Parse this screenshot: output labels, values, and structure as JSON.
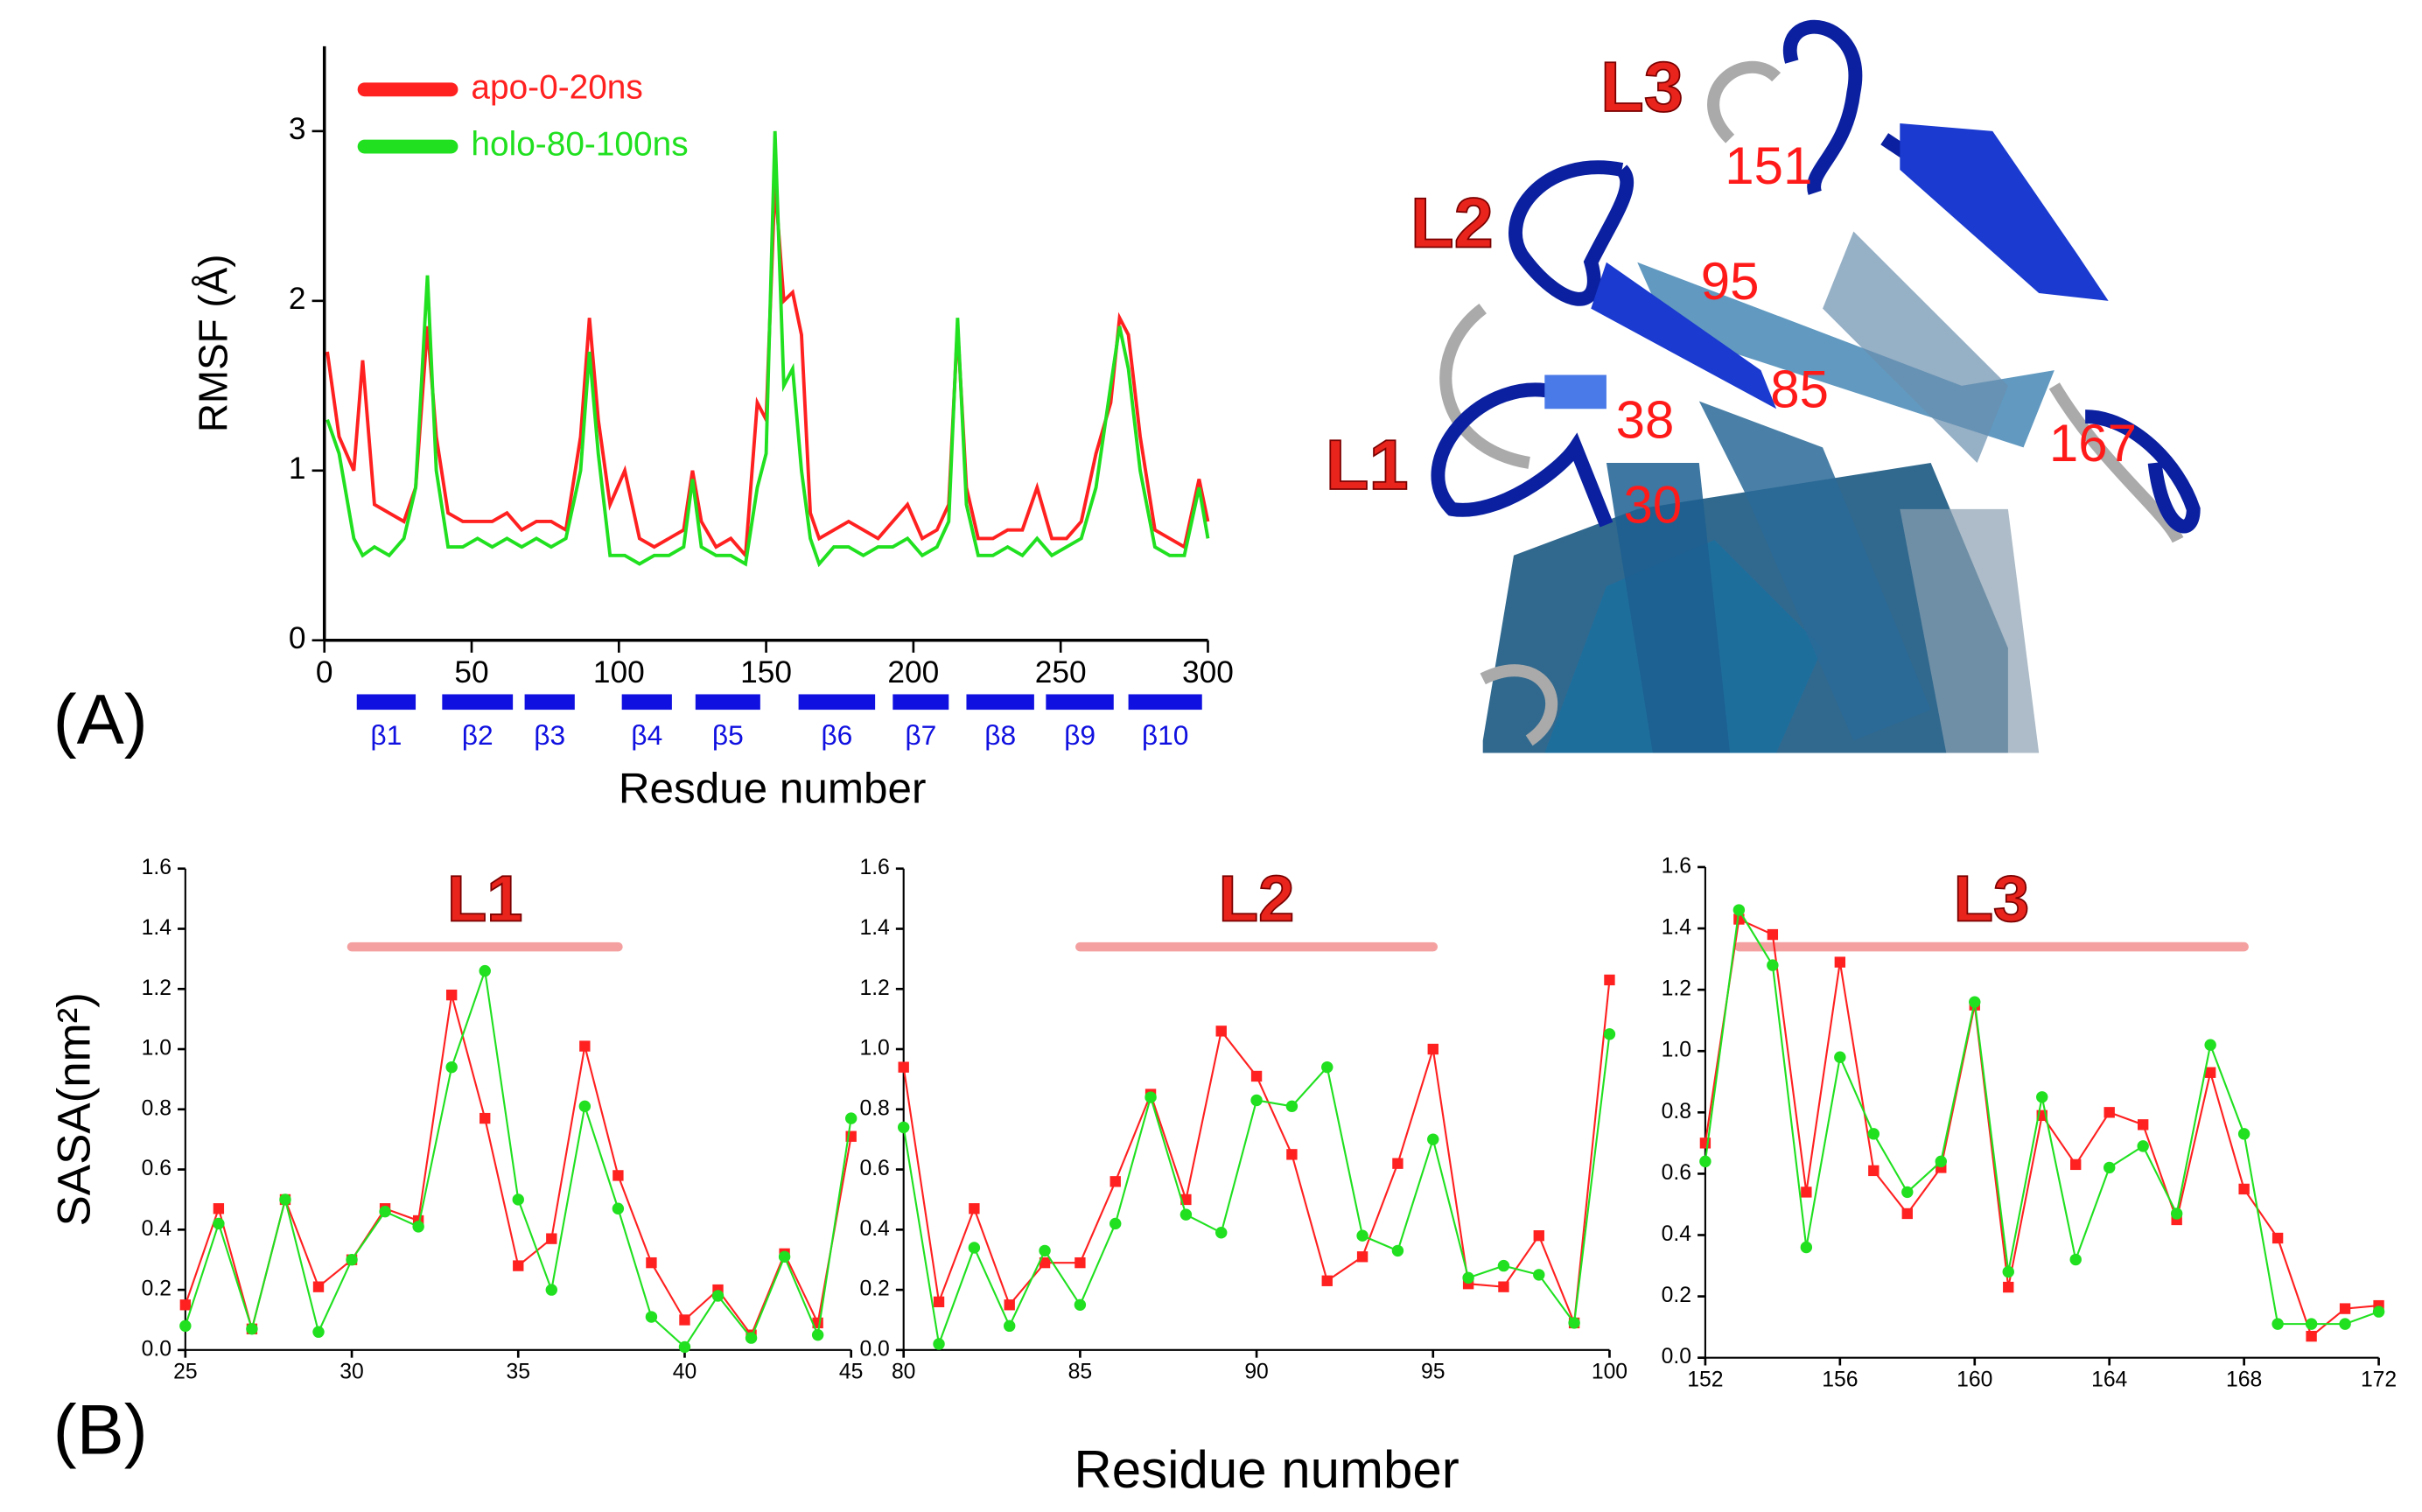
{
  "figure": {
    "panel_labels": [
      "(A)",
      "(B)"
    ],
    "xlabel_B": "Residue number"
  },
  "structure": {
    "loop_labels": [
      "L1",
      "L2",
      "L3"
    ],
    "residue_labels": [
      "151",
      "95",
      "85",
      "38",
      "167",
      "30"
    ]
  },
  "chart_data": [
    {
      "type": "line",
      "ylabel": "RMSF (Å)",
      "xlabel": "Resdue number",
      "xlim": [
        0,
        300
      ],
      "ylim": [
        0,
        3.5
      ],
      "xticks": [
        0,
        50,
        100,
        150,
        200,
        250,
        300
      ],
      "yticks": [
        0,
        1,
        2,
        3
      ],
      "legend": "upper left",
      "x": [
        1,
        5,
        10,
        13,
        17,
        22,
        27,
        31,
        35,
        38,
        42,
        47,
        52,
        57,
        62,
        67,
        72,
        77,
        82,
        87,
        90,
        93,
        97,
        102,
        107,
        112,
        117,
        122,
        125,
        128,
        133,
        138,
        143,
        147,
        150,
        153,
        156,
        159,
        162,
        165,
        168,
        173,
        178,
        183,
        188,
        193,
        198,
        203,
        208,
        212,
        215,
        218,
        222,
        227,
        232,
        237,
        242,
        247,
        252,
        257,
        262,
        267,
        270,
        273,
        277,
        282,
        287,
        292,
        297,
        300
      ],
      "series": [
        {
          "name": "apo-0-20ns",
          "color": "#ff2020",
          "values": [
            1.7,
            1.2,
            1.0,
            1.65,
            0.8,
            0.75,
            0.7,
            0.9,
            1.85,
            1.2,
            0.75,
            0.7,
            0.7,
            0.7,
            0.75,
            0.65,
            0.7,
            0.7,
            0.65,
            1.2,
            1.9,
            1.3,
            0.8,
            1.0,
            0.6,
            0.55,
            0.6,
            0.65,
            1.0,
            0.7,
            0.55,
            0.6,
            0.5,
            1.4,
            1.3,
            2.7,
            2.0,
            2.05,
            1.8,
            0.75,
            0.6,
            0.65,
            0.7,
            0.65,
            0.6,
            0.7,
            0.8,
            0.6,
            0.65,
            0.8,
            1.85,
            0.9,
            0.6,
            0.6,
            0.65,
            0.65,
            0.9,
            0.6,
            0.6,
            0.7,
            1.1,
            1.4,
            1.9,
            1.8,
            1.2,
            0.65,
            0.6,
            0.55,
            0.95,
            0.7
          ]
        },
        {
          "name": "holo-80-100ns",
          "color": "#20e020",
          "values": [
            1.3,
            1.1,
            0.6,
            0.5,
            0.55,
            0.5,
            0.6,
            0.9,
            2.15,
            1.0,
            0.55,
            0.55,
            0.6,
            0.55,
            0.6,
            0.55,
            0.6,
            0.55,
            0.6,
            1.0,
            1.7,
            1.1,
            0.5,
            0.5,
            0.45,
            0.5,
            0.5,
            0.55,
            0.95,
            0.55,
            0.5,
            0.5,
            0.45,
            0.9,
            1.1,
            3.0,
            1.5,
            1.6,
            1.0,
            0.6,
            0.45,
            0.55,
            0.55,
            0.5,
            0.55,
            0.55,
            0.6,
            0.5,
            0.55,
            0.7,
            1.9,
            0.8,
            0.5,
            0.5,
            0.55,
            0.5,
            0.6,
            0.5,
            0.55,
            0.6,
            0.9,
            1.5,
            1.85,
            1.6,
            1.0,
            0.55,
            0.5,
            0.5,
            0.9,
            0.6
          ]
        }
      ],
      "strands": [
        {
          "label": "β1",
          "start": 11,
          "end": 31
        },
        {
          "label": "β2",
          "start": 40,
          "end": 64
        },
        {
          "label": "β3",
          "start": 68,
          "end": 85
        },
        {
          "label": "β4",
          "start": 101,
          "end": 118
        },
        {
          "label": "β5",
          "start": 126,
          "end": 148
        },
        {
          "label": "β6",
          "start": 161,
          "end": 187
        },
        {
          "label": "β7",
          "start": 193,
          "end": 212
        },
        {
          "label": "β8",
          "start": 218,
          "end": 241
        },
        {
          "label": "β9",
          "start": 245,
          "end": 268
        },
        {
          "label": "β10",
          "start": 273,
          "end": 298
        }
      ],
      "strand_color": "#1010e0"
    },
    {
      "type": "line",
      "ylabel": "SASA(nm²)",
      "xlim": [
        25,
        45
      ],
      "ylim": [
        0,
        1.6
      ],
      "xticks": [
        25,
        30,
        35,
        40,
        45
      ],
      "yticks": [
        {
          "value": 0,
          "label": "0.0"
        },
        0.2,
        0.4,
        0.6,
        0.8,
        {
          "value": 1,
          "label": "1.0"
        },
        1.2,
        1.4,
        1.6
      ],
      "annotation": {
        "label": "L1",
        "span": [
          30,
          38
        ],
        "level": 1.34,
        "color": "#f4a0a0"
      },
      "x": [
        25,
        26,
        27,
        28,
        29,
        30,
        31,
        32,
        33,
        34,
        35,
        36,
        37,
        38,
        39,
        40,
        41,
        42,
        43,
        44,
        45
      ],
      "series": [
        {
          "color": "#ff2020",
          "marker": "square",
          "values": [
            0.15,
            0.47,
            0.07,
            0.5,
            0.21,
            0.3,
            0.47,
            0.43,
            1.18,
            0.77,
            0.28,
            0.37,
            1.01,
            0.58,
            0.29,
            0.1,
            0.2,
            0.05,
            0.32,
            0.09,
            0.71
          ]
        },
        {
          "color": "#20e020",
          "marker": "circle",
          "values": [
            0.08,
            0.42,
            0.07,
            0.5,
            0.06,
            0.3,
            0.46,
            0.41,
            0.94,
            1.26,
            0.5,
            0.2,
            0.81,
            0.47,
            0.11,
            0.01,
            0.18,
            0.04,
            0.31,
            0.05,
            0.77
          ]
        }
      ]
    },
    {
      "type": "line",
      "xlim": [
        80,
        100
      ],
      "ylim": [
        0,
        1.6
      ],
      "xticks": [
        80,
        85,
        90,
        95,
        100
      ],
      "yticks": [
        {
          "value": 0,
          "label": "0.0"
        },
        0.2,
        0.4,
        0.6,
        0.8,
        {
          "value": 1,
          "label": "1.0"
        },
        1.2,
        1.4,
        1.6
      ],
      "annotation": {
        "label": "L2",
        "span": [
          85,
          95
        ],
        "level": 1.34,
        "color": "#f4a0a0"
      },
      "x": [
        80,
        81,
        82,
        83,
        84,
        85,
        86,
        87,
        88,
        89,
        90,
        91,
        92,
        93,
        94,
        95,
        96,
        97,
        98,
        99,
        100
      ],
      "series": [
        {
          "color": "#ff2020",
          "marker": "square",
          "values": [
            0.94,
            0.16,
            0.47,
            0.15,
            0.29,
            0.29,
            0.56,
            0.85,
            0.5,
            1.06,
            0.91,
            0.65,
            0.23,
            0.31,
            0.62,
            1.0,
            0.22,
            0.21,
            0.38,
            0.09,
            1.23
          ]
        },
        {
          "color": "#20e020",
          "marker": "circle",
          "values": [
            0.74,
            0.02,
            0.34,
            0.08,
            0.33,
            0.15,
            0.42,
            0.84,
            0.45,
            0.39,
            0.83,
            0.81,
            0.94,
            0.38,
            0.33,
            0.7,
            0.24,
            0.28,
            0.25,
            0.09,
            1.05
          ]
        }
      ]
    },
    {
      "type": "line",
      "xlim": [
        152,
        172
      ],
      "ylim": [
        0,
        1.6
      ],
      "xticks": [
        152,
        156,
        160,
        164,
        168,
        172
      ],
      "yticks": [
        {
          "value": 0,
          "label": "0.0"
        },
        0.2,
        0.4,
        0.6,
        0.8,
        {
          "value": 1,
          "label": "1.0"
        },
        1.2,
        1.4,
        1.6
      ],
      "annotation": {
        "label": "L3",
        "span": [
          153,
          168
        ],
        "level": 1.34,
        "color": "#f4a0a0"
      },
      "x": [
        152,
        153,
        154,
        155,
        156,
        157,
        158,
        159,
        160,
        161,
        162,
        163,
        164,
        165,
        166,
        167,
        168,
        169,
        170,
        171,
        172
      ],
      "series": [
        {
          "color": "#ff2020",
          "marker": "square",
          "values": [
            0.7,
            1.43,
            1.38,
            0.54,
            1.29,
            0.61,
            0.47,
            0.62,
            1.15,
            0.23,
            0.79,
            0.63,
            0.8,
            0.76,
            0.45,
            0.93,
            0.55,
            0.39,
            0.07,
            0.16,
            0.17
          ]
        },
        {
          "color": "#20e020",
          "marker": "circle",
          "values": [
            0.64,
            1.46,
            1.28,
            0.36,
            0.98,
            0.73,
            0.54,
            0.64,
            1.16,
            0.28,
            0.85,
            0.32,
            0.62,
            0.69,
            0.47,
            1.02,
            0.73,
            0.11,
            0.11,
            0.11,
            0.15
          ]
        }
      ]
    }
  ]
}
